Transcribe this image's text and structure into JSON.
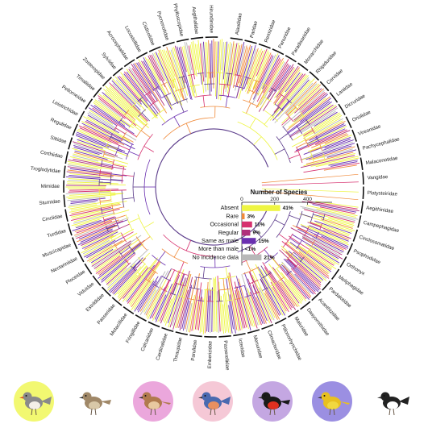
{
  "colors": {
    "absent": "#eef542",
    "rare": "#f08a3a",
    "occasional": "#d6306e",
    "regular": "#b0307a",
    "same_as_male": "#6a2fb0",
    "more_than_male": "#2c1a6e",
    "no_data": "#b8b8b8",
    "branch": "#5a3a8a",
    "background": "#ffffff"
  },
  "families": [
    "Alaudidae",
    "Paridae",
    "Remizidae",
    "Panuridae",
    "Paradisaeidae",
    "Monarchidae",
    "Rhipiduridae",
    "Corvidae",
    "Laniidae",
    "Dicruridae",
    "Oriolidae",
    "Vireonidae",
    "Pachycephalidae",
    "Malaconotidae",
    "Vangidae",
    "Platysteiridae",
    "Aegithinidae",
    "Campephagidae",
    "Cinclosomatidae",
    "Psophodidae",
    "Orthonyx",
    "Meliphagidae",
    "Pardalotidae",
    "Acanthizidae",
    "Dasyornithidae",
    "Maluridae",
    "Ptilonorhynchidae",
    "Climacteridae",
    "Menuridae",
    "Icteridae",
    "Passerellidae",
    "Emberizidae",
    "Parulidae",
    "Thraupidae",
    "Cardinalidae",
    "Calcariidae",
    "Fringillidae",
    "Motacillidae",
    "Passeridae",
    "Estrildidae",
    "Viduidae",
    "Ploceidae",
    "Nectariniidae",
    "Muscicapidae",
    "Turdidae",
    "Cinclidae",
    "Sturnidae",
    "Mimidae",
    "Troglodytidae",
    "Certhiidae",
    "Sittidae",
    "Regulidae",
    "Leiotrichidae",
    "Pellorneidae",
    "Timaliidae",
    "Zosteropidae",
    "Sylviidae",
    "Acrocephalidae",
    "Locustellidae",
    "Cisticolidae",
    "Pycnonotidae",
    "Phylloscopidae",
    "Aegithalidae",
    "Hirundinidae"
  ],
  "chart_data": {
    "type": "bar",
    "title": "Number of Species",
    "categories": [
      "Absent",
      "Rare",
      "Occasional",
      "Regular",
      "Same as male",
      "More than male",
      "No incidence data"
    ],
    "values": [
      41,
      3,
      11,
      9,
      15,
      0.5,
      21
    ],
    "value_labels": [
      "41%",
      "3%",
      "11%",
      "9%",
      "15%",
      "<1%",
      "21%"
    ],
    "xaxis_ticks": [
      "0",
      "200",
      "400"
    ],
    "xlim": [
      0,
      550
    ]
  },
  "birds": [
    {
      "name": "zebra-finch-illustration",
      "halo": "#eef542"
    },
    {
      "name": "warbler-illustration",
      "halo": "#ffffff"
    },
    {
      "name": "wren-illustration",
      "halo": "#e48ad0"
    },
    {
      "name": "bluebird-illustration",
      "halo": "#f2b6c8"
    },
    {
      "name": "minivet-illustration",
      "halo": "#b08ad8"
    },
    {
      "name": "oriole-illustration",
      "halo": "#7a6ad8"
    },
    {
      "name": "magpie-robin-illustration",
      "halo": "#ffffff"
    }
  ]
}
